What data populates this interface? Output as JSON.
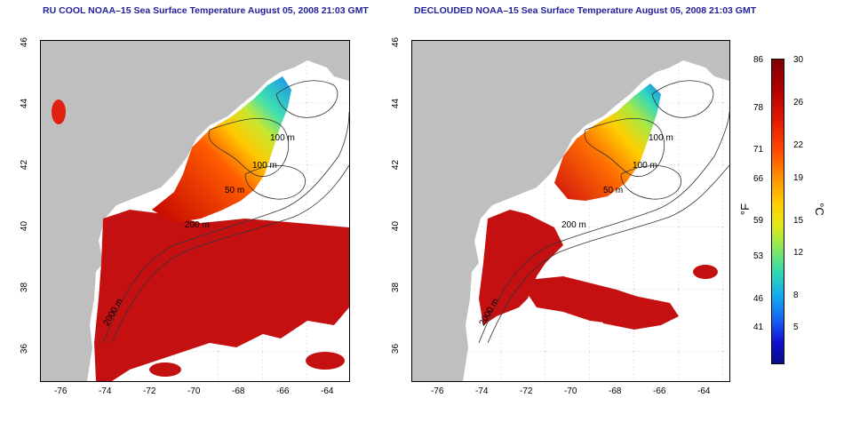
{
  "titles": {
    "left": "RU COOL NOAA–15 Sea Surface Temperature August 05, 2008 21:03 GMT",
    "right": "DECLOUDED NOAA–15 Sea Surface Temperature August 05, 2008 21:03 GMT"
  },
  "axes": {
    "lat_ticks": [
      "46",
      "44",
      "42",
      "40",
      "38",
      "36"
    ],
    "lon_ticks": [
      "-76",
      "-74",
      "-72",
      "-70",
      "-68",
      "-66",
      "-64"
    ]
  },
  "contour_labels": [
    "100 m",
    "100 m",
    "50 m",
    "200 m",
    "2000 m"
  ],
  "colorbar": {
    "fahrenheit_unit": "°F",
    "celsius_unit": "°C",
    "fahrenheit_ticks": [
      "86",
      "78",
      "71",
      "66",
      "59",
      "53",
      "46",
      "41"
    ],
    "celsius_ticks": [
      "30",
      "26",
      "22",
      "19",
      "15",
      "12",
      "8",
      "5"
    ]
  },
  "colors": {
    "land": "#bfbfbf",
    "warm": "#d01010",
    "title": "#1f1f9a"
  }
}
